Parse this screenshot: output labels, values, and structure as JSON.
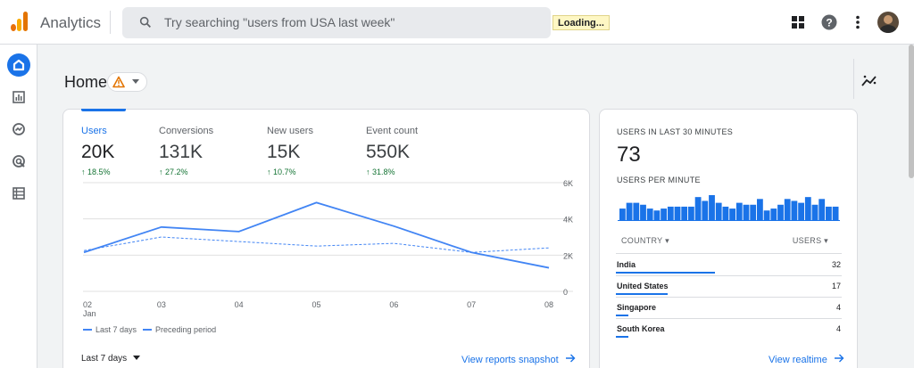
{
  "app": {
    "title": "Analytics"
  },
  "search": {
    "placeholder": "Try searching \"users from USA last week\""
  },
  "status": {
    "loading": "Loading..."
  },
  "page": {
    "title": "Home"
  },
  "metrics": [
    {
      "label": "Users",
      "value": "20K",
      "change": "18.5%"
    },
    {
      "label": "Conversions",
      "value": "131K",
      "change": "27.2%"
    },
    {
      "label": "New users",
      "value": "15K",
      "change": "10.7%"
    },
    {
      "label": "Event count",
      "value": "550K",
      "change": "31.8%"
    }
  ],
  "chart_data": {
    "type": "line",
    "categories": [
      "02",
      "03",
      "04",
      "05",
      "06",
      "07",
      "08"
    ],
    "x_sublabel": "Jan",
    "y_ticks": [
      "6K",
      "4K",
      "2K",
      "0"
    ],
    "ylim": [
      0,
      6000
    ],
    "series": [
      {
        "name": "Last 7 days",
        "values": [
          2150,
          3550,
          3300,
          4900,
          3600,
          2150,
          1300
        ]
      },
      {
        "name": "Preceding period",
        "values": [
          2250,
          3000,
          2750,
          2500,
          2650,
          2150,
          2400
        ]
      }
    ]
  },
  "card_main": {
    "period": "Last 7 days",
    "link": "View reports snapshot"
  },
  "realtime": {
    "title": "USERS IN LAST 30 MINUTES",
    "value": "73",
    "subtitle": "USERS PER MINUTE",
    "per_minute": [
      6,
      9,
      9,
      8,
      6,
      5,
      6,
      7,
      7,
      7,
      7,
      12,
      10,
      13,
      9,
      7,
      6,
      9,
      8,
      8,
      11,
      5,
      6,
      8,
      11,
      10,
      9,
      12,
      8,
      11,
      7,
      7
    ],
    "col_country": "COUNTRY",
    "col_users": "USERS",
    "rows": [
      {
        "country": "India",
        "users": "32",
        "share": 0.44
      },
      {
        "country": "United States",
        "users": "17",
        "share": 0.23
      },
      {
        "country": "Singapore",
        "users": "4",
        "share": 0.055
      },
      {
        "country": "South Korea",
        "users": "4",
        "share": 0.055
      }
    ],
    "link": "View realtime"
  },
  "colors": {
    "accent": "#1a73e8",
    "positive": "#137333",
    "warning": "#e37400"
  }
}
